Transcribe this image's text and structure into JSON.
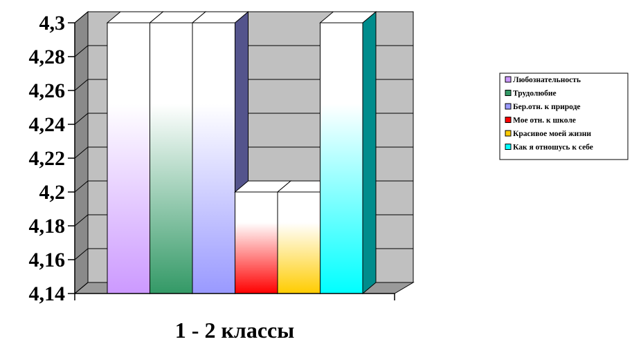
{
  "chart_data": {
    "type": "bar",
    "style": "3d-clustered-column",
    "categories": [
      "1 - 2 классы"
    ],
    "xlabel": "1 - 2 классы",
    "ylabel": "",
    "ylim": [
      4.14,
      4.3
    ],
    "yticks": [
      "4,3",
      "4,28",
      "4,26",
      "4,24",
      "4,22",
      "4,2",
      "4,18",
      "4,16",
      "4,14"
    ],
    "grid": true,
    "legend": "right",
    "series": [
      {
        "name": "Любознательность",
        "values": [
          4.3
        ],
        "color": "#cc99ff"
      },
      {
        "name": "Трудолюбие",
        "values": [
          4.3
        ],
        "color": "#339966"
      },
      {
        "name": "Бер.отн. к природе",
        "values": [
          4.3
        ],
        "color": "#9999ff"
      },
      {
        "name": "Мое отн. к школе",
        "values": [
          4.2
        ],
        "color": "#ff0000"
      },
      {
        "name": "Красивое моей жизни",
        "values": [
          4.2
        ],
        "color": "#ffcc00"
      },
      {
        "name": "Как я отношусь к себе",
        "values": [
          4.3
        ],
        "color": "#00ffff"
      }
    ]
  }
}
